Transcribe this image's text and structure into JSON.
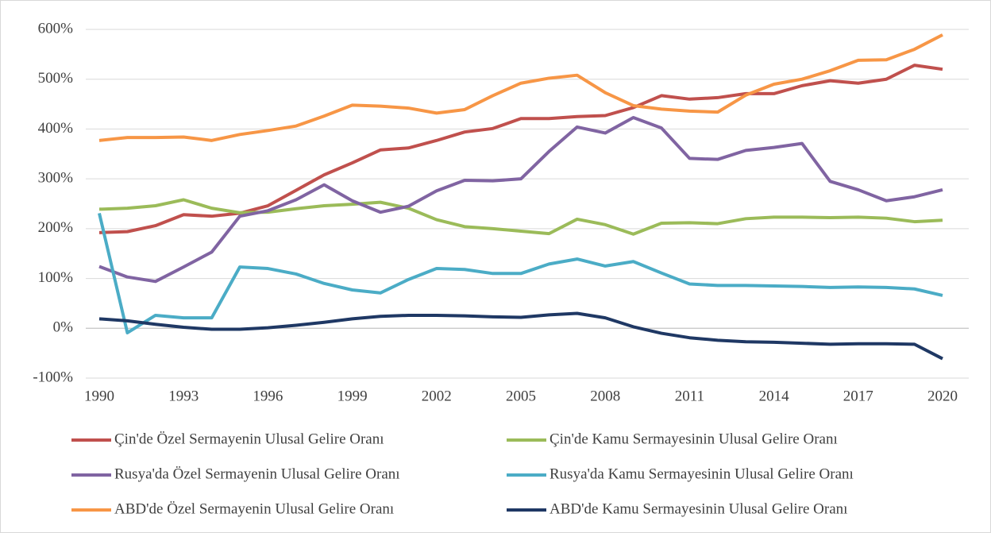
{
  "chart_data": {
    "type": "line",
    "x": [
      1990,
      1991,
      1992,
      1993,
      1994,
      1995,
      1996,
      1997,
      1998,
      1999,
      2000,
      2001,
      2002,
      2003,
      2004,
      2005,
      2006,
      2007,
      2008,
      2009,
      2010,
      2011,
      2012,
      2013,
      2014,
      2015,
      2016,
      2017,
      2018,
      2019,
      2020
    ],
    "xlim": [
      1990,
      2020
    ],
    "xticks": [
      1990,
      1993,
      1996,
      1999,
      2002,
      2005,
      2008,
      2011,
      2014,
      2017,
      2020
    ],
    "ylim": [
      -100,
      600
    ],
    "yticks": [
      {
        "value": -100,
        "label": "-100%"
      },
      {
        "value": 0,
        "label": "0%"
      },
      {
        "value": 100,
        "label": "100%"
      },
      {
        "value": 200,
        "label": "200%"
      },
      {
        "value": 300,
        "label": "300%"
      },
      {
        "value": 400,
        "label": "400%"
      },
      {
        "value": 500,
        "label": "500%"
      },
      {
        "value": 600,
        "label": "600%"
      }
    ],
    "grid": true,
    "series": [
      {
        "name": "Çin'de Özel Sermayenin Ulusal Gelire Oranı",
        "color": "#c0504d",
        "values": [
          192,
          194,
          206,
          228,
          225,
          231,
          246,
          277,
          308,
          332,
          358,
          362,
          377,
          394,
          401,
          421,
          421,
          425,
          427,
          443,
          467,
          460,
          463,
          471,
          471,
          487,
          497,
          492,
          500,
          528,
          520
        ]
      },
      {
        "name": "Çin'de Kamu Sermayesinin Ulusal Gelire Oranı",
        "color": "#9bbb59",
        "values": [
          239,
          241,
          246,
          258,
          241,
          232,
          233,
          240,
          246,
          249,
          253,
          241,
          218,
          204,
          200,
          195,
          190,
          219,
          208,
          189,
          211,
          212,
          210,
          220,
          223,
          223,
          222,
          223,
          221,
          214,
          217
        ]
      },
      {
        "name": "Rusya'da Özel Sermayenin Ulusal Gelire Oranı",
        "color": "#8064a2",
        "values": [
          124,
          103,
          94,
          123,
          153,
          225,
          236,
          258,
          288,
          256,
          233,
          245,
          276,
          297,
          296,
          300,
          355,
          404,
          392,
          423,
          402,
          341,
          339,
          357,
          363,
          371,
          295,
          278,
          256,
          264,
          278
        ]
      },
      {
        "name": "Rusya'da Kamu Sermayesinin Ulusal Gelire Oranı",
        "color": "#4bacc6",
        "values": [
          231,
          -9,
          26,
          21,
          21,
          123,
          120,
          109,
          90,
          77,
          71,
          98,
          120,
          118,
          110,
          110,
          129,
          139,
          125,
          134,
          111,
          89,
          86,
          86,
          85,
          84,
          82,
          83,
          82,
          79,
          66
        ]
      },
      {
        "name": "ABD'de Özel Sermayenin Ulusal Gelire Oranı",
        "color": "#f79646",
        "values": [
          377,
          383,
          383,
          384,
          377,
          389,
          397,
          406,
          426,
          448,
          446,
          442,
          432,
          439,
          467,
          492,
          502,
          508,
          473,
          447,
          440,
          436,
          434,
          468,
          490,
          500,
          517,
          538,
          539,
          560,
          589
        ]
      },
      {
        "name": "ABD'de Kamu Sermayesinin Ulusal Gelire Oranı",
        "color": "#1f3864",
        "values": [
          19,
          15,
          8,
          2,
          -2,
          -2,
          1,
          6,
          12,
          19,
          24,
          26,
          26,
          25,
          23,
          22,
          27,
          30,
          21,
          3,
          -10,
          -19,
          -24,
          -27,
          -28,
          -30,
          -32,
          -31,
          -31,
          -32,
          -61
        ]
      }
    ]
  }
}
